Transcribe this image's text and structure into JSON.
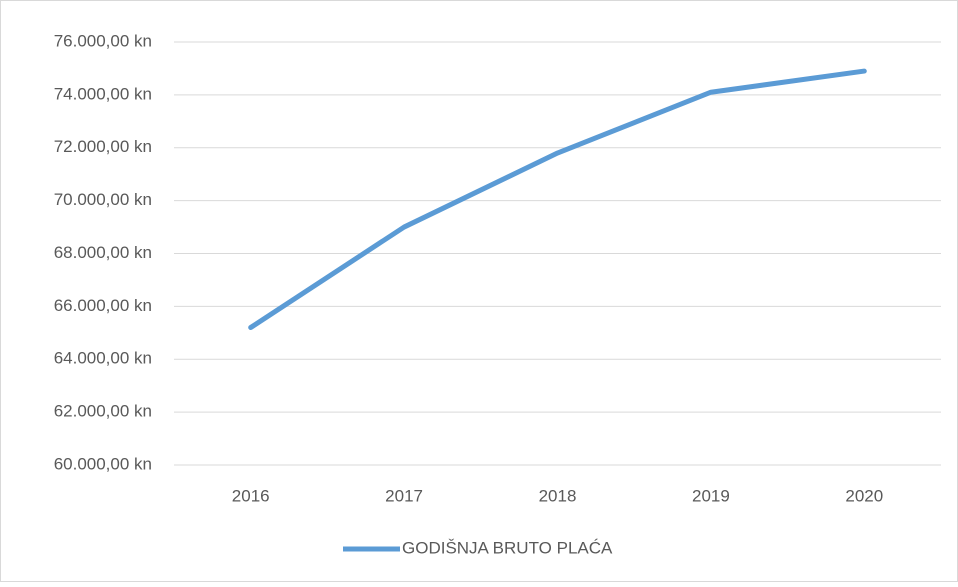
{
  "chart_data": {
    "type": "line",
    "categories": [
      "2016",
      "2017",
      "2018",
      "2019",
      "2020"
    ],
    "series": [
      {
        "name": "GODIŠNJA BRUTO PLAĆA",
        "color": "#5b9bd5",
        "values": [
          65200,
          69000,
          71800,
          74100,
          74900
        ]
      }
    ],
    "ylim": [
      60000,
      76000
    ],
    "yticks": [
      {
        "value": 60000,
        "label": "60.000,00 kn"
      },
      {
        "value": 62000,
        "label": "62.000,00 kn"
      },
      {
        "value": 64000,
        "label": "64.000,00 kn"
      },
      {
        "value": 66000,
        "label": "66.000,00 kn"
      },
      {
        "value": 68000,
        "label": "68.000,00 kn"
      },
      {
        "value": 70000,
        "label": "70.000,00 kn"
      },
      {
        "value": 72000,
        "label": "72.000,00 kn"
      },
      {
        "value": 74000,
        "label": "74.000,00 kn"
      },
      {
        "value": 76000,
        "label": "76.000,00 kn"
      }
    ],
    "grid": true,
    "legend": "bottom"
  }
}
